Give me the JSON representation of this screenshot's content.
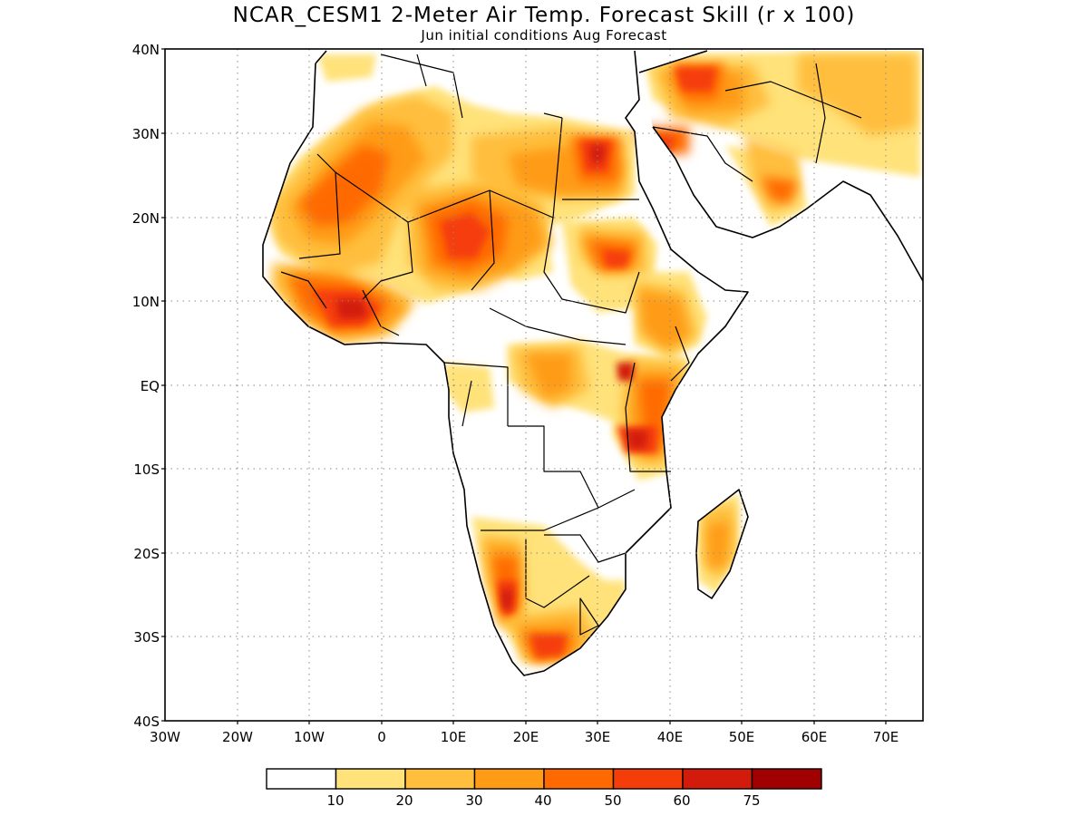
{
  "map": {
    "title": "NCAR_CESM1 2-Meter Air Temp. Forecast Skill (r x 100)",
    "subtitle": "Jun initial conditions  Aug Forecast",
    "lat_labels": [
      "40N",
      "30N",
      "20N",
      "10N",
      "EQ",
      "10S",
      "20S",
      "30S",
      "40S"
    ],
    "lon_labels": [
      "30W",
      "20W",
      "10W",
      "0",
      "10E",
      "20E",
      "30E",
      "40E",
      "50E",
      "60E",
      "70E"
    ],
    "region": "Africa",
    "lon_range": [
      -30,
      75
    ],
    "lat_range": [
      -40,
      40
    ],
    "gridlines": "dotted"
  },
  "colorbar": {
    "labels": [
      "10",
      "20",
      "30",
      "40",
      "50",
      "60",
      "75"
    ],
    "colors": [
      "#ffffff",
      "#ffe27a",
      "#ffbe3c",
      "#ff9b14",
      "#ff6a00",
      "#f53d0a",
      "#d21b0a",
      "#a00000"
    ]
  }
}
